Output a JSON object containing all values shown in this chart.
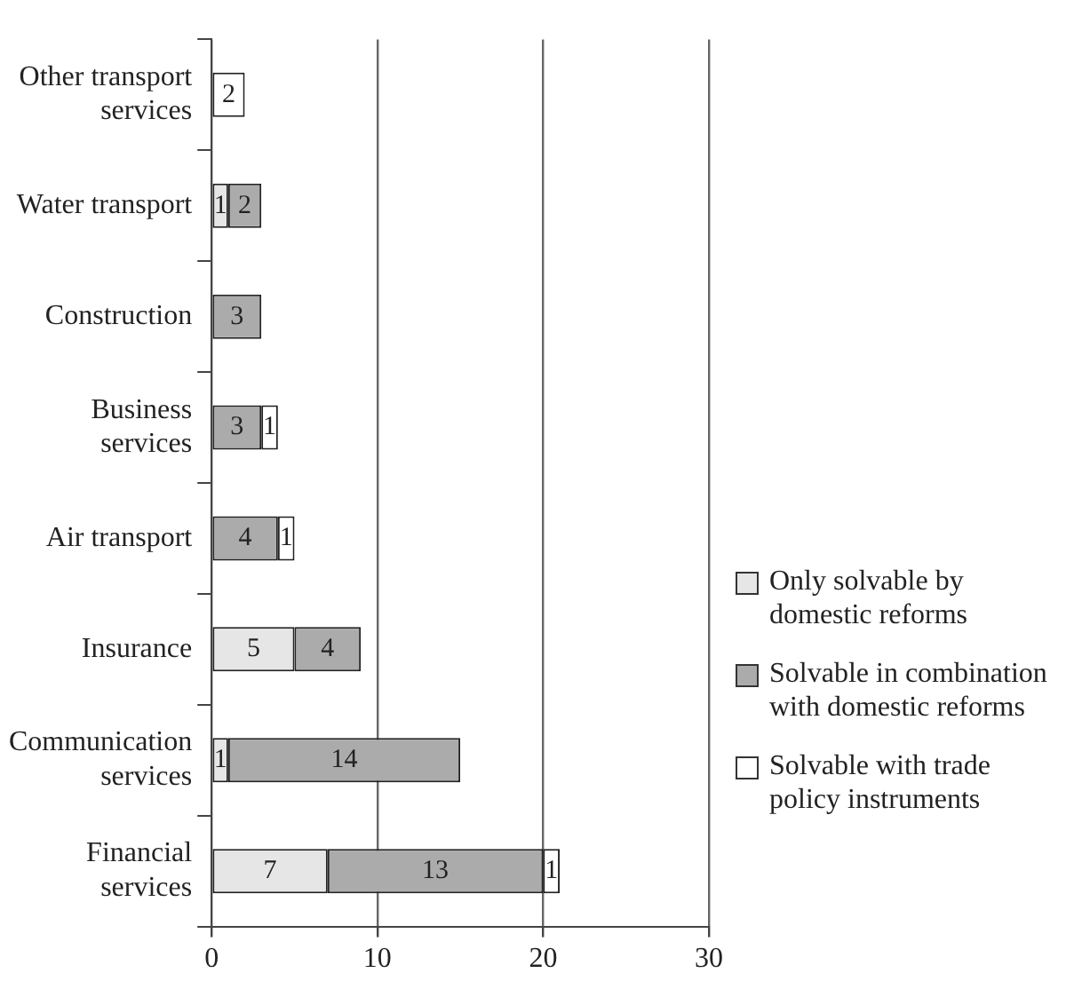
{
  "chart_data": {
    "type": "bar",
    "orientation": "horizontal",
    "stacked": true,
    "data_labels": true,
    "grid": "x",
    "legend": "right",
    "categories": [
      "Other transport services",
      "Water transport",
      "Construction",
      "Business services",
      "Air transport",
      "Insurance",
      "Communication services",
      "Financial services"
    ],
    "series": [
      {
        "name": "Only solvable by domestic reforms",
        "color": "#e6e6e6",
        "values": [
          null,
          1,
          null,
          null,
          null,
          5,
          1,
          7
        ]
      },
      {
        "name": "Solvable in combination with domestic reforms",
        "color": "#ababab",
        "values": [
          null,
          2,
          3,
          3,
          4,
          4,
          14,
          13
        ]
      },
      {
        "name": "Solvable with trade policy instruments",
        "color": "#ffffff",
        "values": [
          2,
          null,
          null,
          1,
          1,
          null,
          null,
          1
        ]
      }
    ],
    "xlim": [
      0,
      30
    ],
    "xticks": [
      0,
      10,
      20,
      30
    ]
  }
}
